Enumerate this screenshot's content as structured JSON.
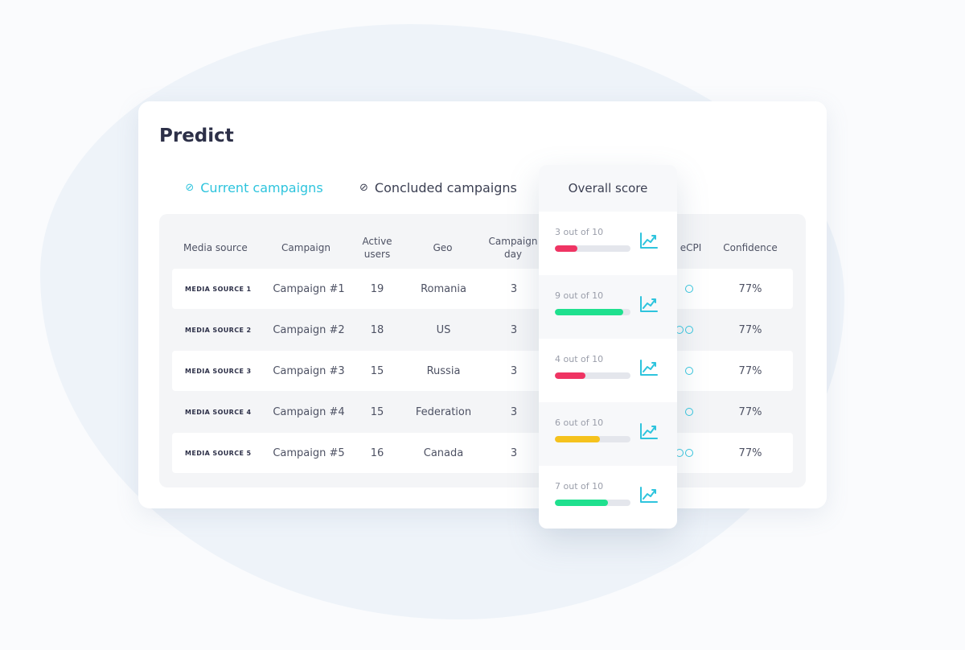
{
  "title": "Predict",
  "tabs": {
    "current": "Current campaigns",
    "concluded": "Concluded campaigns"
  },
  "columns": {
    "media_source": "Media source",
    "campaign": "Campaign",
    "active_users": "Active users",
    "geo": "Geo",
    "campaign_day": "Campaign day",
    "ecpi": "eCPI",
    "confidence": "Confidence"
  },
  "rows": [
    {
      "source": "MEDIA SOURCE 1",
      "campaign": "Campaign #1",
      "users": "19",
      "geo": "Romania",
      "day": "3",
      "confidence": "77%"
    },
    {
      "source": "MEDIA SOURCE 2",
      "campaign": "Campaign #2",
      "users": "18",
      "geo": "US",
      "day": "3",
      "confidence": "77%"
    },
    {
      "source": "MEDIA SOURCE 3",
      "campaign": "Campaign #3",
      "users": "15",
      "geo": "Russia",
      "day": "3",
      "confidence": "77%"
    },
    {
      "source": "MEDIA SOURCE 4",
      "campaign": "Campaign #4",
      "users": "15",
      "geo": "Federation",
      "day": "3",
      "confidence": "77%"
    },
    {
      "source": "MEDIA SOURCE 5",
      "campaign": "Campaign #5",
      "users": "16",
      "geo": "Canada",
      "day": "3",
      "confidence": "77%"
    }
  ],
  "overall": {
    "heading": "Overall score",
    "scores": [
      {
        "label": "3 out of 10",
        "value": 3,
        "color": "#ef3463"
      },
      {
        "label": "9 out of 10",
        "value": 9,
        "color": "#1fe08e"
      },
      {
        "label": "4 out of 10",
        "value": 4,
        "color": "#ef3463"
      },
      {
        "label": "6 out of 10",
        "value": 6,
        "color": "#f5c21d"
      },
      {
        "label": "7 out of 10",
        "value": 7,
        "color": "#1fe08e"
      }
    ]
  },
  "colors": {
    "accent": "#2ec4dd"
  }
}
